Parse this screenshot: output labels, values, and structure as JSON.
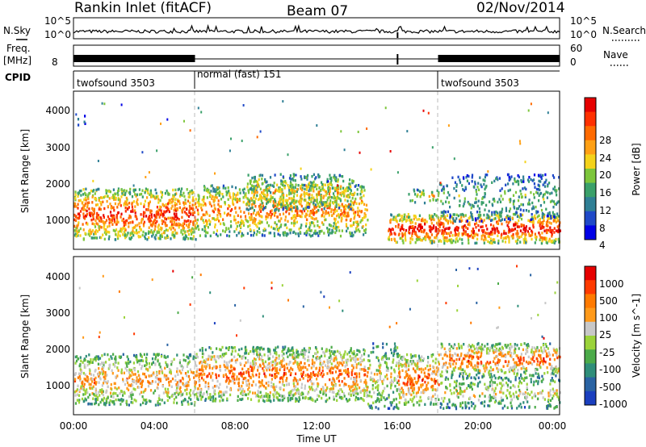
{
  "header": {
    "station": "Rankin Inlet (fitACF)",
    "beam": "Beam 07",
    "date": "02/Nov/2014"
  },
  "noise_panel": {
    "left_label": "N.Sky",
    "right_label": "N.Search",
    "tick_top": "10^5",
    "tick_bottom": "10^0",
    "right_tick_top": "10^5",
    "right_tick_bottom": "10^0"
  },
  "freq_panel": {
    "left_label_line1": "Freq.",
    "left_label_line2": "[MHz]",
    "left_tick": "8",
    "right_label": "Nave",
    "right_tick_top": "60",
    "right_tick_bottom": "0"
  },
  "cpid_panel": {
    "label": "CPID",
    "segments": [
      {
        "name": "twofsound 3503",
        "start_hour": 0,
        "end_hour": 6
      },
      {
        "name": "normal (fast) 151",
        "start_hour": 6,
        "end_hour": 18
      },
      {
        "name": "twofsound 3503",
        "start_hour": 18,
        "end_hour": 24
      }
    ]
  },
  "x_axis": {
    "label": "Time UT",
    "ticks": [
      "00:00",
      "04:00",
      "08:00",
      "12:00",
      "16:00",
      "20:00",
      "00:00"
    ]
  },
  "colors": {
    "power": [
      "#0000e6",
      "#1f49c8",
      "#2f7f95",
      "#3aa06a",
      "#7dc63b",
      "#f4d21a",
      "#ffa014",
      "#ff6a00",
      "#ff3000",
      "#e60000"
    ],
    "velocity": [
      "#1a3fbf",
      "#2a63a3",
      "#2f8e7a",
      "#4cab4a",
      "#9bd33a",
      "#c8c8c8",
      "#ff9a1a",
      "#ff7a00",
      "#ff3a00",
      "#e60000"
    ],
    "noise_line": "#000000",
    "scan_marker": "#000000"
  },
  "chart_data": [
    {
      "type": "heatmap",
      "name": "power",
      "ylabel": "Slant Range [km]",
      "xlabel": "Time UT",
      "xlim": [
        0,
        24
      ],
      "ylim": [
        200,
        4550
      ],
      "ytick_labels": [
        "1000",
        "2000",
        "3000",
        "4000"
      ],
      "colorbar": {
        "label": "Power [dB]",
        "range": [
          0,
          32
        ],
        "tick_labels": [
          "4",
          "8",
          "12",
          "16",
          "20",
          "24",
          "28"
        ]
      },
      "scatter_regions": [
        {
          "t0": 0,
          "t1": 6,
          "r0": 500,
          "r1": 1900,
          "level": 0.78
        },
        {
          "t0": 6,
          "t1": 14.5,
          "r0": 600,
          "r1": 2000,
          "level": 0.65
        },
        {
          "t0": 8.5,
          "t1": 13.8,
          "r0": 1300,
          "r1": 2300,
          "level": 0.55
        },
        {
          "t0": 15.5,
          "t1": 24,
          "r0": 400,
          "r1": 1200,
          "level": 0.85
        },
        {
          "t0": 16.5,
          "t1": 18,
          "r0": 1500,
          "r1": 1900,
          "level": 0.5
        },
        {
          "t0": 18,
          "t1": 24,
          "r0": 1000,
          "r1": 2300,
          "level": 0.35
        },
        {
          "t0": 0.1,
          "t1": 0.6,
          "r0": 3600,
          "r1": 4000,
          "level": 0.2
        }
      ]
    },
    {
      "type": "heatmap",
      "name": "velocity",
      "ylabel": "Slant Range [km]",
      "xlabel": "Time UT",
      "xlim": [
        0,
        24
      ],
      "ylim": [
        200,
        4550
      ],
      "ytick_labels": [
        "1000",
        "2000",
        "3000",
        "4000"
      ],
      "colorbar": {
        "label": "Velocity [m s^-1]",
        "range": [
          -1500,
          1500
        ],
        "tick_labels": [
          "1000",
          "500",
          "100",
          "25",
          "-25",
          "-100",
          "-500",
          "-1000"
        ]
      },
      "scatter_regions": [
        {
          "t0": 0,
          "t1": 6,
          "r0": 500,
          "r1": 1900,
          "level": 0.62
        },
        {
          "t0": 6,
          "t1": 14.5,
          "r0": 600,
          "r1": 2100,
          "level": 0.7
        },
        {
          "t0": 14.5,
          "t1": 16,
          "r0": 400,
          "r1": 2200,
          "level": 0.5
        },
        {
          "t0": 16,
          "t1": 18,
          "r0": 500,
          "r1": 1900,
          "level": 0.72
        },
        {
          "t0": 18,
          "t1": 24,
          "r0": 400,
          "r1": 1300,
          "level": 0.48
        },
        {
          "t0": 18,
          "t1": 24,
          "r0": 1300,
          "r1": 2200,
          "level": 0.7
        }
      ]
    }
  ]
}
